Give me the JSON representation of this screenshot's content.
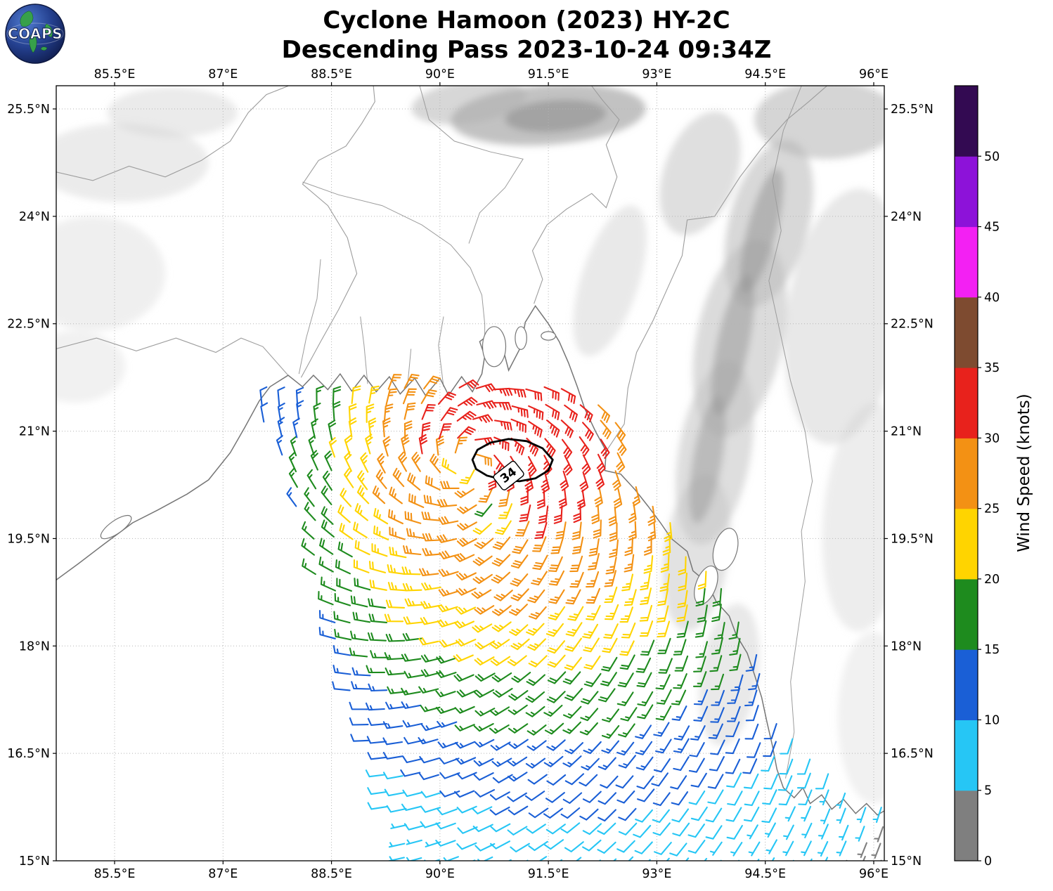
{
  "header": {
    "title_line1": "Cyclone Hamoon (2023) HY-2C",
    "title_line2": "Descending Pass 2023-10-24 09:34Z",
    "logo_text": "COAPS"
  },
  "axes": {
    "extent": {
      "lon_min": 84.693,
      "lon_max": 96.146,
      "lat_min": 15.0,
      "lat_max": 25.824
    },
    "lon_ticks": [
      {
        "value": 85.5,
        "label": "85.5°E"
      },
      {
        "value": 87.0,
        "label": "87°E"
      },
      {
        "value": 88.5,
        "label": "88.5°E"
      },
      {
        "value": 90.0,
        "label": "90°E"
      },
      {
        "value": 91.5,
        "label": "91.5°E"
      },
      {
        "value": 93.0,
        "label": "93°E"
      },
      {
        "value": 94.5,
        "label": "94.5°E"
      },
      {
        "value": 96.0,
        "label": "96°E"
      }
    ],
    "lat_ticks": [
      {
        "value": 25.5,
        "label": "25.5°N"
      },
      {
        "value": 24.0,
        "label": "24°N"
      },
      {
        "value": 22.5,
        "label": "22.5°N"
      },
      {
        "value": 21.0,
        "label": "21°N"
      },
      {
        "value": 19.5,
        "label": "19.5°N"
      },
      {
        "value": 18.0,
        "label": "18°N"
      },
      {
        "value": 16.5,
        "label": "16.5°N"
      },
      {
        "value": 15.0,
        "label": "15°N"
      }
    ]
  },
  "colorbar": {
    "title": "Wind Speed (knots)",
    "bin_edges": [
      0,
      5,
      10,
      15,
      20,
      25,
      30,
      35,
      40,
      45,
      50,
      55
    ],
    "colors": [
      "#7f7f7f",
      "#26c6f5",
      "#1a5fd6",
      "#1e8b1e",
      "#ffd400",
      "#f39114",
      "#e8221c",
      "#7e4b30",
      "#f320f3",
      "#8d12d9",
      "#330a52"
    ],
    "tick_labels": [
      "0",
      "5",
      "10",
      "15",
      "20",
      "25",
      "30",
      "35",
      "40",
      "45",
      "50"
    ]
  },
  "chart_data": {
    "type": "scatter",
    "subtype": "satellite-wind-barb-map",
    "title": "Cyclone Hamoon (2023) HY-2C Descending Pass 2023-10-24 09:34Z",
    "xlabel_ticks": [
      "85.5°E",
      "87°E",
      "88.5°E",
      "90°E",
      "91.5°E",
      "93°E",
      "94.5°E",
      "96°E"
    ],
    "ylabel_ticks": [
      "25.5°N",
      "24°N",
      "22.5°N",
      "21°N",
      "19.5°N",
      "18°N",
      "16.5°N",
      "15°N"
    ],
    "colorbar_label": "Wind Speed (knots)",
    "colorbar_range_knots": [
      0,
      55
    ],
    "storm": {
      "name": "Hamoon",
      "year": "2023",
      "sensor": "HY-2C",
      "pass": "Descending",
      "time": "2023-10-24 09:34Z",
      "center_lon": 90.4,
      "center_lat": 20.55
    },
    "wind_field": {
      "center_lon": 90.4,
      "center_lat": 20.55,
      "peak_base": 32,
      "peak_amp": 2.5,
      "peak_phase": 45,
      "decay_base": 3.7,
      "decay_amp": 1.35,
      "decay_phase": 170,
      "core_radius": 0.5,
      "shape": 1.6,
      "eye_dip": 9,
      "eye_radius": 0.3,
      "wake_lon": 90.78,
      "wake_lat": 19.9,
      "wake_dip": 13,
      "wake_radius": 0.3,
      "inflow_deg": 22,
      "min_knots": 3,
      "max_knots": 34.4,
      "grid_dlon": 0.245,
      "grid_dlat": 0.235,
      "jitter": 0.06
    },
    "swath_polygon": [
      [
        87.42,
        21.38
      ],
      [
        88.3,
        21.56
      ],
      [
        89.5,
        21.6
      ],
      [
        90.7,
        21.64
      ],
      [
        91.4,
        21.64
      ],
      [
        92.15,
        21.52
      ],
      [
        92.5,
        21.1
      ],
      [
        92.66,
        20.5
      ],
      [
        93.08,
        19.9
      ],
      [
        93.58,
        19.25
      ],
      [
        94.08,
        18.55
      ],
      [
        94.48,
        17.7
      ],
      [
        94.7,
        16.9
      ],
      [
        95.32,
        16.35
      ],
      [
        96.2,
        15.7
      ],
      [
        96.2,
        15.0
      ],
      [
        89.45,
        15.0
      ],
      [
        89.12,
        16.1
      ],
      [
        88.66,
        17.6
      ],
      [
        88.2,
        19.2
      ],
      [
        87.76,
        20.5
      ]
    ],
    "contour_34kt": {
      "label": "34",
      "label_lon": 90.95,
      "label_lat": 20.38,
      "label_rotation": -38,
      "points": [
        [
          90.45,
          20.6
        ],
        [
          90.52,
          20.74
        ],
        [
          90.7,
          20.84
        ],
        [
          90.95,
          20.89
        ],
        [
          91.2,
          20.86
        ],
        [
          91.42,
          20.76
        ],
        [
          91.56,
          20.6
        ],
        [
          91.5,
          20.45
        ],
        [
          91.32,
          20.34
        ],
        [
          91.1,
          20.3
        ],
        [
          90.88,
          20.32
        ],
        [
          90.65,
          20.38
        ],
        [
          90.5,
          20.47
        ]
      ]
    }
  },
  "geo": {
    "coastlines": [
      [
        [
          84.69,
          18.92
        ],
        [
          85.0,
          19.15
        ],
        [
          85.35,
          19.42
        ],
        [
          85.75,
          19.72
        ],
        [
          86.1,
          19.9
        ],
        [
          86.5,
          20.12
        ],
        [
          86.8,
          20.32
        ],
        [
          87.1,
          20.7
        ],
        [
          87.3,
          21.05
        ],
        [
          87.5,
          21.42
        ],
        [
          87.65,
          21.62
        ],
        [
          87.9,
          21.78
        ],
        [
          88.1,
          21.62
        ],
        [
          88.25,
          21.78
        ],
        [
          88.45,
          21.58
        ],
        [
          88.62,
          21.8
        ],
        [
          88.78,
          21.56
        ],
        [
          88.95,
          21.78
        ],
        [
          89.12,
          21.55
        ],
        [
          89.3,
          21.76
        ],
        [
          89.45,
          21.52
        ],
        [
          89.65,
          21.74
        ],
        [
          89.8,
          21.5
        ],
        [
          90.0,
          21.74
        ],
        [
          90.12,
          21.5
        ],
        [
          90.3,
          21.76
        ],
        [
          90.45,
          21.55
        ],
        [
          90.58,
          21.8
        ],
        [
          90.62,
          22.05
        ],
        [
          90.55,
          22.25
        ],
        [
          90.72,
          22.38
        ],
        [
          90.88,
          22.12
        ],
        [
          90.95,
          21.85
        ],
        [
          91.12,
          22.18
        ],
        [
          91.18,
          22.52
        ],
        [
          91.32,
          22.75
        ],
        [
          91.5,
          22.5
        ],
        [
          91.65,
          22.25
        ],
        [
          91.78,
          21.95
        ],
        [
          91.9,
          21.62
        ],
        [
          92.0,
          21.32
        ],
        [
          92.15,
          21.0
        ],
        [
          92.3,
          20.72
        ],
        [
          92.28,
          20.45
        ],
        [
          92.5,
          20.4
        ],
        [
          92.7,
          20.18
        ],
        [
          92.88,
          19.95
        ],
        [
          93.05,
          19.72
        ],
        [
          93.2,
          19.5
        ],
        [
          93.42,
          19.32
        ],
        [
          93.5,
          19.05
        ],
        [
          93.7,
          18.88
        ],
        [
          93.82,
          18.62
        ],
        [
          94.0,
          18.42
        ],
        [
          94.1,
          18.15
        ],
        [
          94.25,
          17.9
        ],
        [
          94.35,
          17.6
        ],
        [
          94.45,
          17.28
        ],
        [
          94.52,
          16.95
        ],
        [
          94.6,
          16.6
        ],
        [
          94.66,
          16.28
        ],
        [
          94.75,
          16.02
        ],
        [
          94.9,
          15.88
        ],
        [
          95.02,
          16.02
        ],
        [
          95.12,
          15.8
        ],
        [
          95.28,
          15.92
        ],
        [
          95.42,
          15.72
        ],
        [
          95.58,
          15.86
        ],
        [
          95.75,
          15.66
        ],
        [
          95.9,
          15.8
        ],
        [
          96.05,
          15.64
        ],
        [
          96.15,
          15.7
        ]
      ]
    ],
    "borders": [
      [
        [
          88.08,
          21.75
        ],
        [
          88.35,
          22.25
        ],
        [
          88.6,
          22.7
        ],
        [
          88.85,
          23.2
        ],
        [
          88.72,
          23.7
        ],
        [
          88.45,
          24.15
        ],
        [
          88.1,
          24.45
        ],
        [
          88.32,
          24.78
        ],
        [
          88.7,
          24.98
        ],
        [
          88.92,
          25.3
        ],
        [
          89.1,
          25.6
        ],
        [
          89.08,
          25.82
        ]
      ],
      [
        [
          91.3,
          22.78
        ],
        [
          91.42,
          23.12
        ],
        [
          91.28,
          23.52
        ],
        [
          91.48,
          23.88
        ],
        [
          91.75,
          24.1
        ],
        [
          92.1,
          24.32
        ],
        [
          92.3,
          24.12
        ],
        [
          92.45,
          24.55
        ],
        [
          92.3,
          25.0
        ],
        [
          92.48,
          25.35
        ],
        [
          92.25,
          25.62
        ],
        [
          92.1,
          25.82
        ]
      ],
      [
        [
          92.3,
          20.72
        ],
        [
          92.55,
          21.1
        ],
        [
          92.6,
          21.6
        ],
        [
          92.72,
          22.1
        ],
        [
          92.95,
          22.55
        ],
        [
          93.15,
          23.0
        ],
        [
          93.35,
          23.45
        ],
        [
          93.42,
          23.95
        ],
        [
          93.8,
          24.0
        ],
        [
          94.15,
          24.55
        ],
        [
          94.45,
          24.95
        ],
        [
          94.8,
          25.35
        ],
        [
          95.1,
          25.6
        ],
        [
          95.35,
          25.82
        ]
      ],
      [
        [
          84.69,
          24.62
        ],
        [
          85.2,
          24.5
        ],
        [
          85.7,
          24.7
        ],
        [
          86.2,
          24.55
        ],
        [
          86.7,
          24.78
        ],
        [
          87.1,
          25.05
        ],
        [
          87.35,
          25.45
        ],
        [
          87.6,
          25.7
        ],
        [
          87.9,
          25.82
        ]
      ],
      [
        [
          84.69,
          22.15
        ],
        [
          85.25,
          22.3
        ],
        [
          85.8,
          22.12
        ],
        [
          86.35,
          22.3
        ],
        [
          86.9,
          22.1
        ],
        [
          87.25,
          22.3
        ],
        [
          87.55,
          22.18
        ],
        [
          87.9,
          21.78
        ]
      ]
    ],
    "rivers": [
      [
        [
          88.1,
          24.48
        ],
        [
          88.6,
          24.3
        ],
        [
          89.2,
          24.15
        ],
        [
          89.75,
          23.88
        ],
        [
          90.15,
          23.6
        ],
        [
          90.42,
          23.28
        ],
        [
          90.58,
          22.9
        ],
        [
          90.62,
          22.5
        ],
        [
          90.62,
          22.05
        ]
      ],
      [
        [
          89.72,
          25.82
        ],
        [
          89.85,
          25.35
        ],
        [
          90.2,
          25.05
        ],
        [
          90.7,
          24.9
        ],
        [
          91.15,
          24.8
        ],
        [
          90.9,
          24.4
        ],
        [
          90.55,
          24.05
        ],
        [
          90.4,
          23.62
        ]
      ],
      [
        [
          88.05,
          21.8
        ],
        [
          88.15,
          22.3
        ],
        [
          88.3,
          22.85
        ],
        [
          88.35,
          23.4
        ]
      ],
      [
        [
          95.0,
          25.82
        ],
        [
          94.75,
          25.2
        ],
        [
          94.6,
          24.5
        ],
        [
          94.72,
          23.8
        ],
        [
          94.55,
          23.1
        ],
        [
          94.7,
          22.4
        ],
        [
          94.85,
          21.7
        ],
        [
          95.05,
          21.0
        ],
        [
          95.15,
          20.3
        ],
        [
          95.0,
          19.6
        ],
        [
          95.05,
          18.9
        ],
        [
          94.95,
          18.2
        ],
        [
          94.85,
          17.5
        ],
        [
          94.9,
          16.8
        ],
        [
          94.78,
          16.15
        ]
      ],
      [
        [
          89.0,
          21.66
        ],
        [
          88.95,
          22.2
        ],
        [
          88.9,
          22.6
        ]
      ],
      [
        [
          89.55,
          21.62
        ],
        [
          89.6,
          22.15
        ]
      ],
      [
        [
          90.05,
          21.62
        ],
        [
          89.98,
          22.2
        ],
        [
          90.05,
          22.6
        ]
      ]
    ],
    "islands": [
      [
        93.68,
        18.85,
        0.14,
        0.28,
        20
      ],
      [
        93.95,
        19.35,
        0.16,
        0.3,
        15
      ],
      [
        91.12,
        22.3,
        0.08,
        0.16,
        0
      ],
      [
        90.75,
        22.18,
        0.16,
        0.28,
        0
      ],
      [
        91.5,
        22.33,
        0.1,
        0.06,
        0
      ]
    ],
    "lakes": [
      [
        85.52,
        19.66,
        0.25,
        0.09,
        -35
      ]
    ],
    "terrain": [
      [
        91.5,
        25.42,
        1.35,
        0.42,
        -4,
        "#9a9a9a",
        0.6
      ],
      [
        90.4,
        25.6,
        0.8,
        0.3,
        -8,
        "#b0b0b0",
        0.5
      ],
      [
        95.35,
        25.35,
        1.0,
        0.55,
        0,
        "#ababab",
        0.5
      ],
      [
        93.6,
        24.6,
        0.5,
        0.9,
        20,
        "#c0c0c0",
        0.5
      ],
      [
        94.55,
        23.9,
        0.55,
        1.2,
        15,
        "#b8b8b8",
        0.55
      ],
      [
        94.15,
        22.3,
        0.6,
        1.4,
        12,
        "#bdbdbd",
        0.55
      ],
      [
        93.8,
        20.7,
        0.5,
        1.3,
        10,
        "#c2c2c2",
        0.55
      ],
      [
        93.55,
        19.3,
        0.45,
        1.1,
        8,
        "#c6c6c6",
        0.5
      ],
      [
        94.0,
        17.6,
        0.4,
        1.0,
        8,
        "#cfcfcf",
        0.45
      ],
      [
        95.6,
        22.6,
        0.8,
        1.8,
        8,
        "#cccccc",
        0.45
      ],
      [
        95.9,
        19.8,
        0.6,
        1.6,
        5,
        "#d2d2d2",
        0.4
      ],
      [
        96.0,
        17.0,
        0.5,
        1.2,
        0,
        "#d8d8d8",
        0.35
      ],
      [
        92.35,
        23.1,
        0.4,
        1.1,
        18,
        "#d4d4d4",
        0.5
      ],
      [
        85.6,
        24.75,
        1.2,
        0.55,
        0,
        "#dadada",
        0.55
      ],
      [
        85.2,
        23.2,
        1.0,
        0.8,
        0,
        "#e0e0e0",
        0.5
      ],
      [
        86.3,
        25.45,
        0.9,
        0.35,
        0,
        "#d8d8d8",
        0.5
      ],
      [
        84.95,
        21.9,
        0.7,
        0.5,
        0,
        "#e4e4e4",
        0.5
      ],
      [
        94.45,
        23.8,
        0.2,
        0.9,
        15,
        "#8f8f8f",
        0.5
      ],
      [
        94.05,
        22.2,
        0.22,
        1.0,
        12,
        "#949494",
        0.5
      ],
      [
        93.7,
        20.6,
        0.2,
        0.9,
        10,
        "#9a9a9a",
        0.5
      ],
      [
        91.6,
        25.4,
        0.7,
        0.22,
        -4,
        "#848484",
        0.5
      ]
    ]
  }
}
